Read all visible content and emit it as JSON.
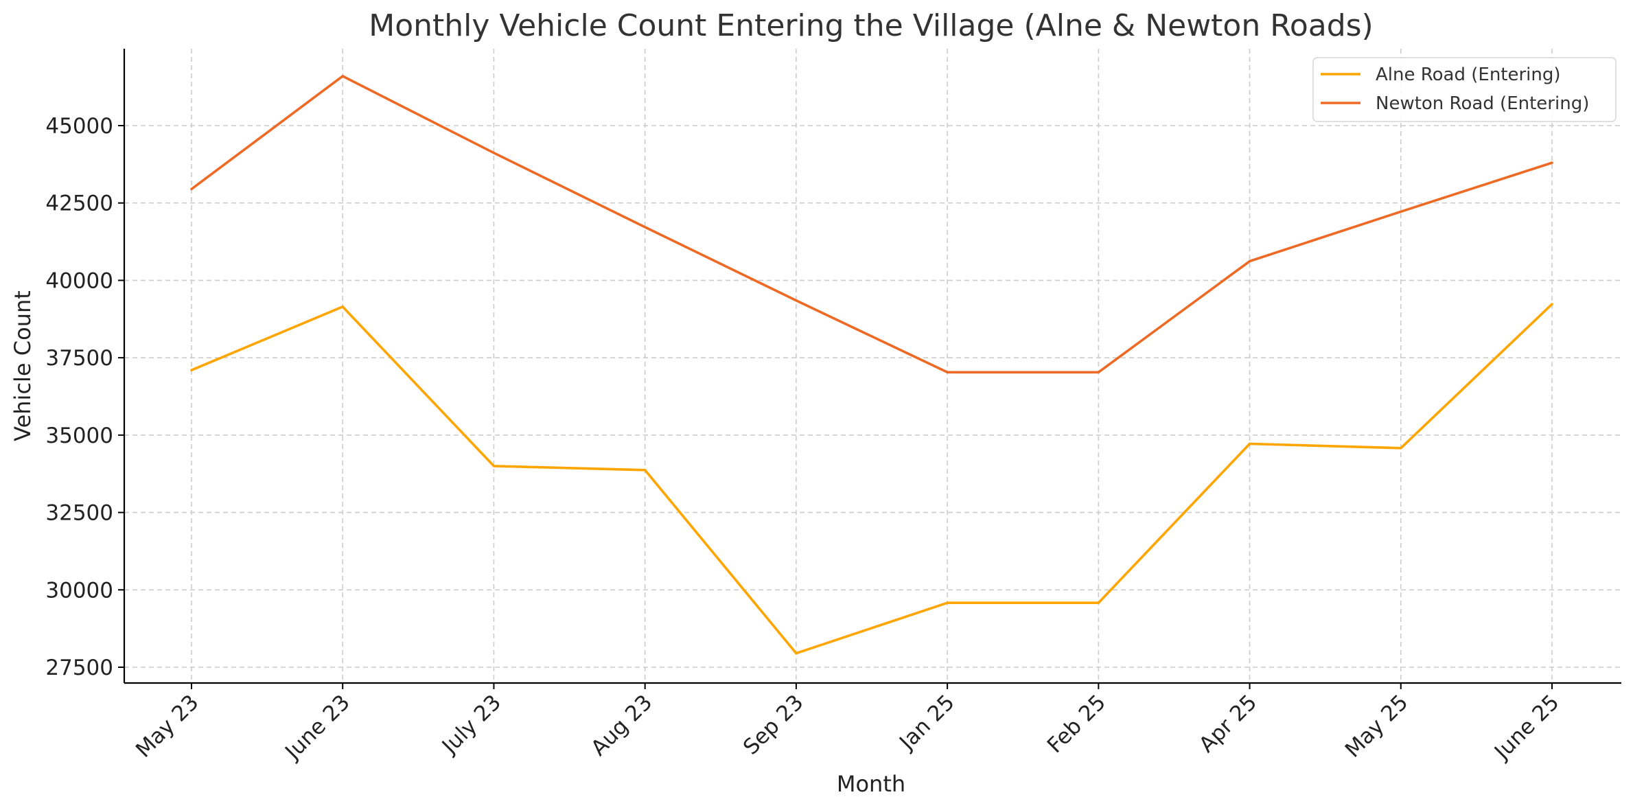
{
  "chart_data": {
    "type": "line",
    "title": "Monthly Vehicle Count Entering the Village (Alne & Newton Roads)",
    "xlabel": "Month",
    "ylabel": "Vehicle Count",
    "categories": [
      "May 23",
      "June 23",
      "July 23",
      "Aug 23",
      "Sep 23",
      "Jan 25",
      "Feb 25",
      "Apr 25",
      "May 25",
      "June 25"
    ],
    "yticks": [
      27500,
      30000,
      32500,
      35000,
      37500,
      40000,
      42500,
      45000
    ],
    "ylim": [
      27000,
      47500
    ],
    "grid": true,
    "legend_position": "top-right",
    "series": [
      {
        "name": "Alne Road (Entering)",
        "color": "#FFA500",
        "values": [
          37100,
          39150,
          34000,
          33870,
          27950,
          29580,
          29580,
          34720,
          34580,
          39230
        ]
      },
      {
        "name": "Newton Road (Entering)",
        "color": "#EE6A24",
        "values": [
          42950,
          46600,
          44120,
          41720,
          39350,
          37030,
          37030,
          40620,
          42220,
          43800
        ]
      }
    ]
  }
}
